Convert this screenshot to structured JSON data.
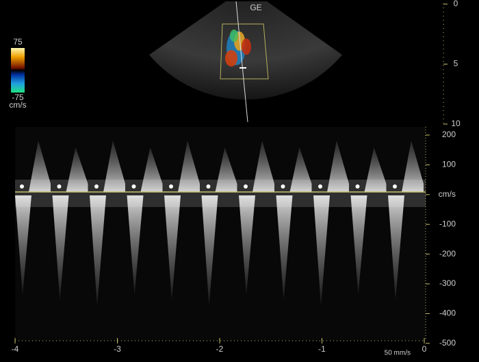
{
  "header": {
    "vendor": "GE"
  },
  "color_scale": {
    "max": "75",
    "min": "-75",
    "unit": "cm/s"
  },
  "depth_scale": {
    "ticks": [
      "0",
      "5",
      "10"
    ]
  },
  "velocity_scale": {
    "ticks": [
      "200",
      "100",
      "cm/s",
      "-100",
      "-200",
      "-300",
      "-400",
      "-500"
    ]
  },
  "time_scale": {
    "ticks": [
      "-4",
      "-3",
      "-2",
      "-1",
      "0"
    ]
  },
  "sweep_speed": "50 mm/s"
}
